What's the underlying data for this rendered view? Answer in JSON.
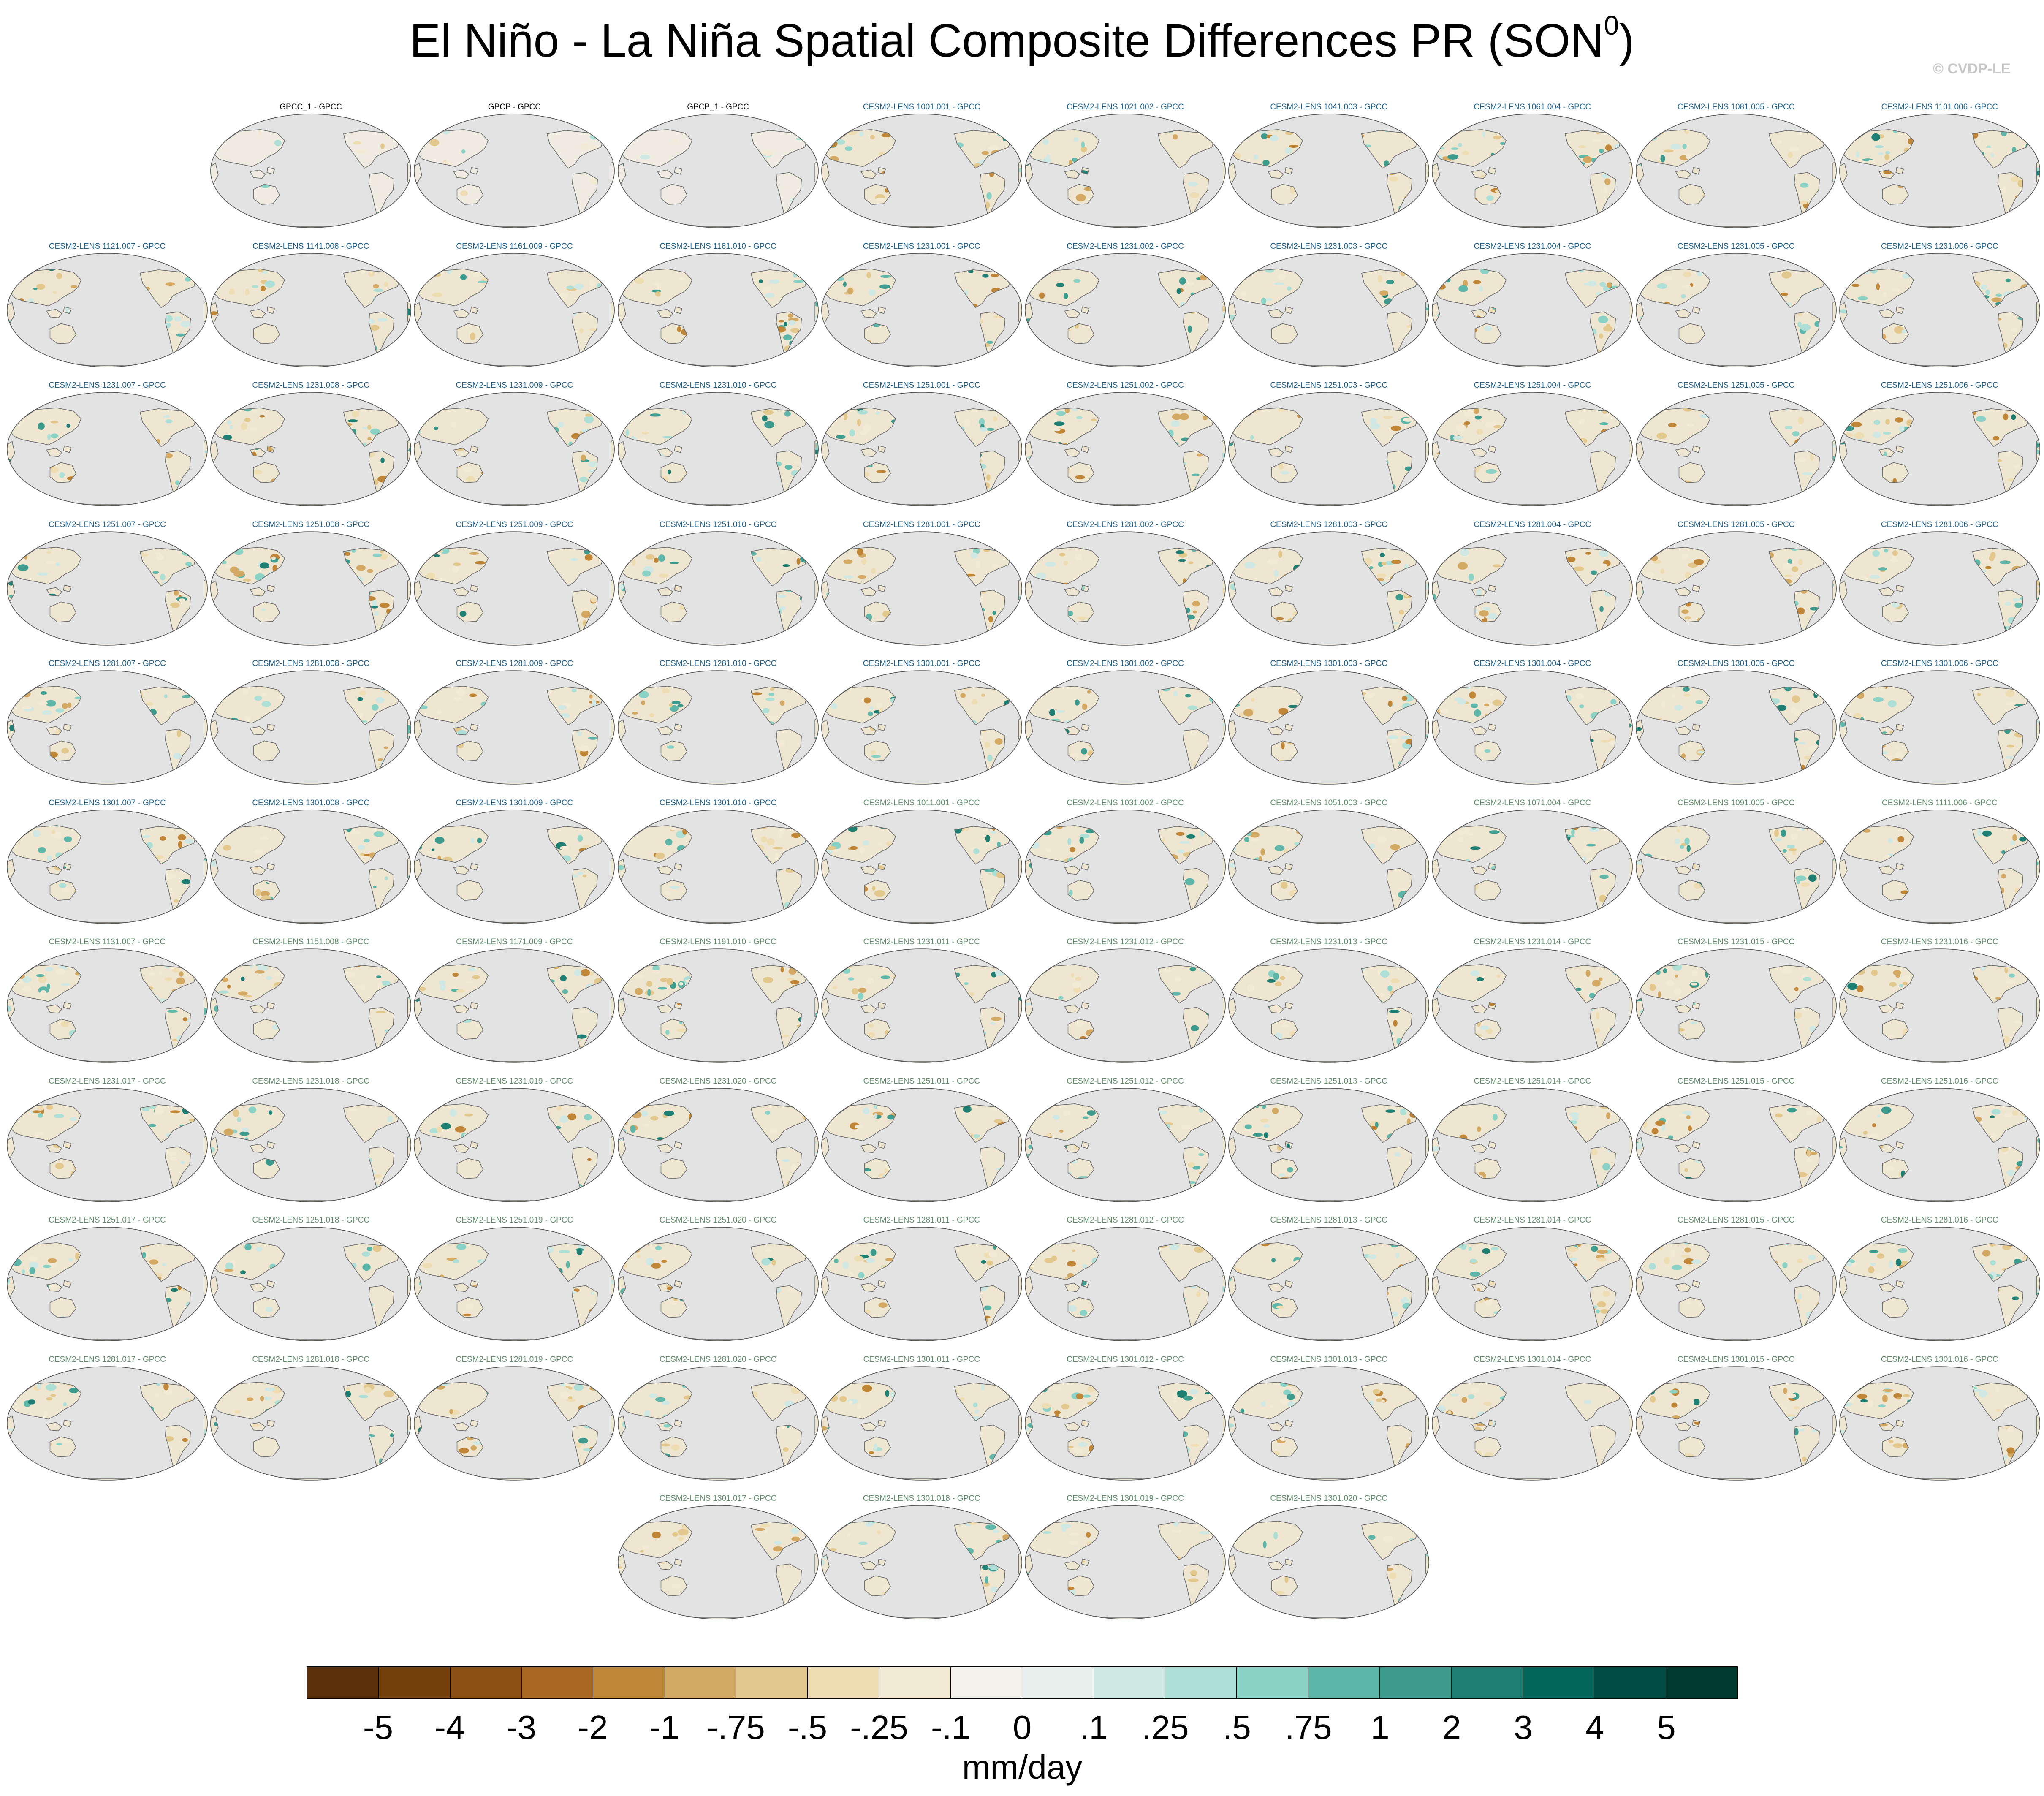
{
  "figure": {
    "title": "El Niño - La Niña Spatial Composite Differences PR (SON",
    "title_superscript": "0",
    "title_close": ")",
    "watermark": "© CVDP-LE",
    "colors": {
      "ocean": "#e3e3e3",
      "coast": "#6f6f6f",
      "title_obs": "#000000",
      "title_model_a": "#1f5f8a",
      "title_model_b": "#5e8a68"
    }
  },
  "panels": [
    {
      "label": "GPCC_1 - GPCC",
      "group": "obs"
    },
    {
      "label": "GPCP - GPCC",
      "group": "obs"
    },
    {
      "label": "GPCP_1 - GPCC",
      "group": "obs"
    },
    {
      "label": "CESM2-LENS 1001.001 - GPCC",
      "group": "a"
    },
    {
      "label": "CESM2-LENS 1021.002 - GPCC",
      "group": "a"
    },
    {
      "label": "CESM2-LENS 1041.003 - GPCC",
      "group": "a"
    },
    {
      "label": "CESM2-LENS 1061.004 - GPCC",
      "group": "a"
    },
    {
      "label": "CESM2-LENS 1081.005 - GPCC",
      "group": "a"
    },
    {
      "label": "CESM2-LENS 1101.006 - GPCC",
      "group": "a"
    },
    {
      "label": "CESM2-LENS 1121.007 - GPCC",
      "group": "a"
    },
    {
      "label": "CESM2-LENS 1141.008 - GPCC",
      "group": "a"
    },
    {
      "label": "CESM2-LENS 1161.009 - GPCC",
      "group": "a"
    },
    {
      "label": "CESM2-LENS 1181.010 - GPCC",
      "group": "a"
    },
    {
      "label": "CESM2-LENS 1231.001 - GPCC",
      "group": "a"
    },
    {
      "label": "CESM2-LENS 1231.002 - GPCC",
      "group": "a"
    },
    {
      "label": "CESM2-LENS 1231.003 - GPCC",
      "group": "a"
    },
    {
      "label": "CESM2-LENS 1231.004 - GPCC",
      "group": "a"
    },
    {
      "label": "CESM2-LENS 1231.005 - GPCC",
      "group": "a"
    },
    {
      "label": "CESM2-LENS 1231.006 - GPCC",
      "group": "a"
    },
    {
      "label": "CESM2-LENS 1231.007 - GPCC",
      "group": "a"
    },
    {
      "label": "CESM2-LENS 1231.008 - GPCC",
      "group": "a"
    },
    {
      "label": "CESM2-LENS 1231.009 - GPCC",
      "group": "a"
    },
    {
      "label": "CESM2-LENS 1231.010 - GPCC",
      "group": "a"
    },
    {
      "label": "CESM2-LENS 1251.001 - GPCC",
      "group": "a"
    },
    {
      "label": "CESM2-LENS 1251.002 - GPCC",
      "group": "a"
    },
    {
      "label": "CESM2-LENS 1251.003 - GPCC",
      "group": "a"
    },
    {
      "label": "CESM2-LENS 1251.004 - GPCC",
      "group": "a"
    },
    {
      "label": "CESM2-LENS 1251.005 - GPCC",
      "group": "a"
    },
    {
      "label": "CESM2-LENS 1251.006 - GPCC",
      "group": "a"
    },
    {
      "label": "CESM2-LENS 1251.007 - GPCC",
      "group": "a"
    },
    {
      "label": "CESM2-LENS 1251.008 - GPCC",
      "group": "a"
    },
    {
      "label": "CESM2-LENS 1251.009 - GPCC",
      "group": "a"
    },
    {
      "label": "CESM2-LENS 1251.010 - GPCC",
      "group": "a"
    },
    {
      "label": "CESM2-LENS 1281.001 - GPCC",
      "group": "a"
    },
    {
      "label": "CESM2-LENS 1281.002 - GPCC",
      "group": "a"
    },
    {
      "label": "CESM2-LENS 1281.003 - GPCC",
      "group": "a"
    },
    {
      "label": "CESM2-LENS 1281.004 - GPCC",
      "group": "a"
    },
    {
      "label": "CESM2-LENS 1281.005 - GPCC",
      "group": "a"
    },
    {
      "label": "CESM2-LENS 1281.006 - GPCC",
      "group": "a"
    },
    {
      "label": "CESM2-LENS 1281.007 - GPCC",
      "group": "a"
    },
    {
      "label": "CESM2-LENS 1281.008 - GPCC",
      "group": "a"
    },
    {
      "label": "CESM2-LENS 1281.009 - GPCC",
      "group": "a"
    },
    {
      "label": "CESM2-LENS 1281.010 - GPCC",
      "group": "a"
    },
    {
      "label": "CESM2-LENS 1301.001 - GPCC",
      "group": "a"
    },
    {
      "label": "CESM2-LENS 1301.002 - GPCC",
      "group": "a"
    },
    {
      "label": "CESM2-LENS 1301.003 - GPCC",
      "group": "a"
    },
    {
      "label": "CESM2-LENS 1301.004 - GPCC",
      "group": "a"
    },
    {
      "label": "CESM2-LENS 1301.005 - GPCC",
      "group": "a"
    },
    {
      "label": "CESM2-LENS 1301.006 - GPCC",
      "group": "a"
    },
    {
      "label": "CESM2-LENS 1301.007 - GPCC",
      "group": "a"
    },
    {
      "label": "CESM2-LENS 1301.008 - GPCC",
      "group": "a"
    },
    {
      "label": "CESM2-LENS 1301.009 - GPCC",
      "group": "a"
    },
    {
      "label": "CESM2-LENS 1301.010 - GPCC",
      "group": "a"
    },
    {
      "label": "CESM2-LENS 1011.001 - GPCC",
      "group": "b"
    },
    {
      "label": "CESM2-LENS 1031.002 - GPCC",
      "group": "b"
    },
    {
      "label": "CESM2-LENS 1051.003 - GPCC",
      "group": "b"
    },
    {
      "label": "CESM2-LENS 1071.004 - GPCC",
      "group": "b"
    },
    {
      "label": "CESM2-LENS 1091.005 - GPCC",
      "group": "b"
    },
    {
      "label": "CESM2-LENS 1111.006 - GPCC",
      "group": "b"
    },
    {
      "label": "CESM2-LENS 1131.007 - GPCC",
      "group": "b"
    },
    {
      "label": "CESM2-LENS 1151.008 - GPCC",
      "group": "b"
    },
    {
      "label": "CESM2-LENS 1171.009 - GPCC",
      "group": "b"
    },
    {
      "label": "CESM2-LENS 1191.010 - GPCC",
      "group": "b"
    },
    {
      "label": "CESM2-LENS 1231.011 - GPCC",
      "group": "b"
    },
    {
      "label": "CESM2-LENS 1231.012 - GPCC",
      "group": "b"
    },
    {
      "label": "CESM2-LENS 1231.013 - GPCC",
      "group": "b"
    },
    {
      "label": "CESM2-LENS 1231.014 - GPCC",
      "group": "b"
    },
    {
      "label": "CESM2-LENS 1231.015 - GPCC",
      "group": "b"
    },
    {
      "label": "CESM2-LENS 1231.016 - GPCC",
      "group": "b"
    },
    {
      "label": "CESM2-LENS 1231.017 - GPCC",
      "group": "b"
    },
    {
      "label": "CESM2-LENS 1231.018 - GPCC",
      "group": "b"
    },
    {
      "label": "CESM2-LENS 1231.019 - GPCC",
      "group": "b"
    },
    {
      "label": "CESM2-LENS 1231.020 - GPCC",
      "group": "b"
    },
    {
      "label": "CESM2-LENS 1251.011 - GPCC",
      "group": "b"
    },
    {
      "label": "CESM2-LENS 1251.012 - GPCC",
      "group": "b"
    },
    {
      "label": "CESM2-LENS 1251.013 - GPCC",
      "group": "b"
    },
    {
      "label": "CESM2-LENS 1251.014 - GPCC",
      "group": "b"
    },
    {
      "label": "CESM2-LENS 1251.015 - GPCC",
      "group": "b"
    },
    {
      "label": "CESM2-LENS 1251.016 - GPCC",
      "group": "b"
    },
    {
      "label": "CESM2-LENS 1251.017 - GPCC",
      "group": "b"
    },
    {
      "label": "CESM2-LENS 1251.018 - GPCC",
      "group": "b"
    },
    {
      "label": "CESM2-LENS 1251.019 - GPCC",
      "group": "b"
    },
    {
      "label": "CESM2-LENS 1251.020 - GPCC",
      "group": "b"
    },
    {
      "label": "CESM2-LENS 1281.011 - GPCC",
      "group": "b"
    },
    {
      "label": "CESM2-LENS 1281.012 - GPCC",
      "group": "b"
    },
    {
      "label": "CESM2-LENS 1281.013 - GPCC",
      "group": "b"
    },
    {
      "label": "CESM2-LENS 1281.014 - GPCC",
      "group": "b"
    },
    {
      "label": "CESM2-LENS 1281.015 - GPCC",
      "group": "b"
    },
    {
      "label": "CESM2-LENS 1281.016 - GPCC",
      "group": "b"
    },
    {
      "label": "CESM2-LENS 1281.017 - GPCC",
      "group": "b"
    },
    {
      "label": "CESM2-LENS 1281.018 - GPCC",
      "group": "b"
    },
    {
      "label": "CESM2-LENS 1281.019 - GPCC",
      "group": "b"
    },
    {
      "label": "CESM2-LENS 1281.020 - GPCC",
      "group": "b"
    },
    {
      "label": "CESM2-LENS 1301.011 - GPCC",
      "group": "b"
    },
    {
      "label": "CESM2-LENS 1301.012 - GPCC",
      "group": "b"
    },
    {
      "label": "CESM2-LENS 1301.013 - GPCC",
      "group": "b"
    },
    {
      "label": "CESM2-LENS 1301.014 - GPCC",
      "group": "b"
    },
    {
      "label": "CESM2-LENS 1301.015 - GPCC",
      "group": "b"
    },
    {
      "label": "CESM2-LENS 1301.016 - GPCC",
      "group": "b"
    },
    {
      "label": "CESM2-LENS 1301.017 - GPCC",
      "group": "b"
    },
    {
      "label": "CESM2-LENS 1301.018 - GPCC",
      "group": "b"
    },
    {
      "label": "CESM2-LENS 1301.019 - GPCC",
      "group": "b"
    },
    {
      "label": "CESM2-LENS 1301.020 - GPCC",
      "group": "b"
    }
  ],
  "colorbar": {
    "units": "mm/day",
    "ticks": [
      "-5",
      "-4",
      "-3",
      "-2",
      "-1",
      "-.75",
      "-.5",
      "-.25",
      "-.1",
      "0",
      ".1",
      ".25",
      ".5",
      ".75",
      "1",
      "2",
      "3",
      "4",
      "5"
    ],
    "colors": [
      "#5a300a",
      "#73400c",
      "#8c5014",
      "#a86824",
      "#c08638",
      "#d3a862",
      "#e3c88e",
      "#eedcb2",
      "#f3ead5",
      "#f3f1ec",
      "#e8efed",
      "#cfe8e3",
      "#aedfd6",
      "#8ad2c5",
      "#5db6a8",
      "#3d9b8e",
      "#1e7f72",
      "#02665a",
      "#014d43",
      "#013a30"
    ]
  }
}
